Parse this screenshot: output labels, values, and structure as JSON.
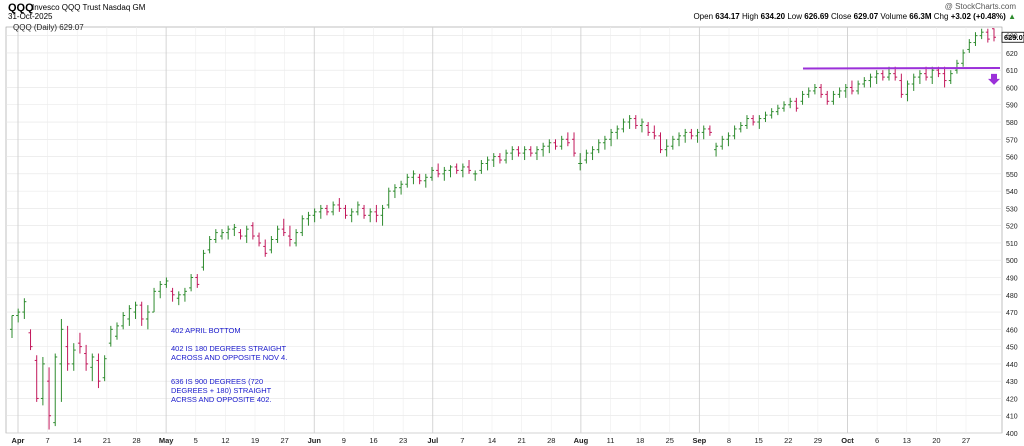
{
  "header": {
    "symbol": "QQQ",
    "full_name": "Invesco QQQ Trust Nasdaq GM",
    "date": "31-Oct-2025",
    "watermark": "@ StockCharts.com",
    "open_label": "Open",
    "open_value": "634.17",
    "high_label": "High",
    "high_value": "634.20",
    "low_label": "Low",
    "low_value": "626.69",
    "close_label": "Close",
    "close_value": "629.07",
    "volume_label": "Volume",
    "volume_value": "66.3M",
    "chg_label": "Chg",
    "chg_value": "+3.02 (+0.48%)",
    "chg_arrow": "▲"
  },
  "annotations": [
    "402 APRIL BOTTOM",
    "402 IS 180 DEGREES STRAIGHT ACROSS AND OPPOSITE NOV 4.",
    "636 IS 900 DEGREES (720 DEGREES + 180) STRAIGHT ACRSS AND OPPOSITE 402."
  ],
  "chart_data": {
    "type": "bar",
    "legend": "QQQ (Daily) 629.07",
    "last_price_label": "629.07",
    "up_color": "#2e8b2e",
    "down_color": "#c2185b",
    "resistance_line_color": "#9b30d9",
    "arrow_color": "#9b30d9",
    "resistance_level": 611,
    "ylim": [
      400,
      635
    ],
    "y_ticks": [
      400,
      410,
      420,
      430,
      440,
      450,
      460,
      470,
      480,
      490,
      500,
      510,
      520,
      530,
      540,
      550,
      560,
      570,
      580,
      590,
      600,
      610,
      620,
      630
    ],
    "x_tick_labels": [
      "Apr",
      "7",
      "14",
      "21",
      "28",
      "May",
      "5",
      "12",
      "19",
      "27",
      "Jun",
      "9",
      "16",
      "23",
      "Jul",
      "7",
      "14",
      "21",
      "28",
      "Aug",
      "11",
      "18",
      "25",
      "Sep",
      "8",
      "15",
      "22",
      "29",
      "Oct",
      "6",
      "13",
      "20",
      "27"
    ],
    "major_tick_labels": [
      "Apr",
      "May",
      "Jun",
      "Jul",
      "Aug",
      "Sep",
      "Oct"
    ],
    "grid": true,
    "bars": [
      {
        "o": 460,
        "h": 468,
        "l": 455,
        "c": 468
      },
      {
        "o": 468,
        "h": 472,
        "l": 464,
        "c": 470
      },
      {
        "o": 470,
        "h": 478,
        "l": 466,
        "c": 476
      },
      {
        "o": 458,
        "h": 460,
        "l": 448,
        "c": 450
      },
      {
        "o": 442,
        "h": 445,
        "l": 418,
        "c": 420
      },
      {
        "o": 420,
        "h": 444,
        "l": 416,
        "c": 440
      },
      {
        "o": 430,
        "h": 438,
        "l": 402,
        "c": 410
      },
      {
        "o": 406,
        "h": 446,
        "l": 404,
        "c": 444
      },
      {
        "o": 440,
        "h": 466,
        "l": 418,
        "c": 460
      },
      {
        "o": 450,
        "h": 462,
        "l": 436,
        "c": 440
      },
      {
        "o": 440,
        "h": 452,
        "l": 436,
        "c": 448
      },
      {
        "o": 452,
        "h": 458,
        "l": 446,
        "c": 450
      },
      {
        "o": 446,
        "h": 451,
        "l": 436,
        "c": 440
      },
      {
        "o": 438,
        "h": 446,
        "l": 430,
        "c": 444
      },
      {
        "o": 442,
        "h": 446,
        "l": 426,
        "c": 430
      },
      {
        "o": 432,
        "h": 445,
        "l": 430,
        "c": 443
      },
      {
        "o": 452,
        "h": 462,
        "l": 450,
        "c": 460
      },
      {
        "o": 456,
        "h": 464,
        "l": 454,
        "c": 462
      },
      {
        "o": 462,
        "h": 470,
        "l": 460,
        "c": 468
      },
      {
        "o": 466,
        "h": 474,
        "l": 462,
        "c": 472
      },
      {
        "o": 470,
        "h": 476,
        "l": 466,
        "c": 474
      },
      {
        "o": 474,
        "h": 476,
        "l": 462,
        "c": 466
      },
      {
        "o": 466,
        "h": 474,
        "l": 460,
        "c": 470
      },
      {
        "o": 470,
        "h": 484,
        "l": 470,
        "c": 482
      },
      {
        "o": 482,
        "h": 488,
        "l": 478,
        "c": 486
      },
      {
        "o": 486,
        "h": 490,
        "l": 484,
        "c": 488
      },
      {
        "o": 482,
        "h": 484,
        "l": 476,
        "c": 480
      },
      {
        "o": 478,
        "h": 482,
        "l": 474,
        "c": 480
      },
      {
        "o": 480,
        "h": 484,
        "l": 476,
        "c": 482
      },
      {
        "o": 484,
        "h": 492,
        "l": 482,
        "c": 490
      },
      {
        "o": 490,
        "h": 492,
        "l": 484,
        "c": 486
      },
      {
        "o": 496,
        "h": 506,
        "l": 494,
        "c": 504
      },
      {
        "o": 506,
        "h": 514,
        "l": 504,
        "c": 512
      },
      {
        "o": 512,
        "h": 518,
        "l": 510,
        "c": 516
      },
      {
        "o": 514,
        "h": 518,
        "l": 512,
        "c": 516
      },
      {
        "o": 516,
        "h": 520,
        "l": 512,
        "c": 518
      },
      {
        "o": 518,
        "h": 521,
        "l": 514,
        "c": 519
      },
      {
        "o": 516,
        "h": 518,
        "l": 512,
        "c": 514
      },
      {
        "o": 514,
        "h": 520,
        "l": 510,
        "c": 518
      },
      {
        "o": 520,
        "h": 522,
        "l": 512,
        "c": 514
      },
      {
        "o": 514,
        "h": 516,
        "l": 508,
        "c": 510
      },
      {
        "o": 508,
        "h": 512,
        "l": 502,
        "c": 504
      },
      {
        "o": 506,
        "h": 514,
        "l": 504,
        "c": 512
      },
      {
        "o": 512,
        "h": 520,
        "l": 510,
        "c": 518
      },
      {
        "o": 518,
        "h": 524,
        "l": 514,
        "c": 516
      },
      {
        "o": 514,
        "h": 520,
        "l": 508,
        "c": 512
      },
      {
        "o": 510,
        "h": 518,
        "l": 508,
        "c": 516
      },
      {
        "o": 516,
        "h": 526,
        "l": 514,
        "c": 524
      },
      {
        "o": 524,
        "h": 528,
        "l": 520,
        "c": 526
      },
      {
        "o": 526,
        "h": 530,
        "l": 522,
        "c": 528
      },
      {
        "o": 528,
        "h": 532,
        "l": 524,
        "c": 530
      },
      {
        "o": 530,
        "h": 532,
        "l": 526,
        "c": 528
      },
      {
        "o": 528,
        "h": 534,
        "l": 526,
        "c": 532
      },
      {
        "o": 532,
        "h": 536,
        "l": 528,
        "c": 530
      },
      {
        "o": 530,
        "h": 532,
        "l": 524,
        "c": 526
      },
      {
        "o": 526,
        "h": 530,
        "l": 522,
        "c": 528
      },
      {
        "o": 528,
        "h": 534,
        "l": 526,
        "c": 532
      },
      {
        "o": 530,
        "h": 532,
        "l": 524,
        "c": 526
      },
      {
        "o": 526,
        "h": 530,
        "l": 522,
        "c": 528
      },
      {
        "o": 528,
        "h": 532,
        "l": 522,
        "c": 526
      },
      {
        "o": 526,
        "h": 532,
        "l": 520,
        "c": 530
      },
      {
        "o": 532,
        "h": 542,
        "l": 530,
        "c": 540
      },
      {
        "o": 540,
        "h": 544,
        "l": 536,
        "c": 542
      },
      {
        "o": 542,
        "h": 546,
        "l": 538,
        "c": 544
      },
      {
        "o": 544,
        "h": 550,
        "l": 542,
        "c": 548
      },
      {
        "o": 548,
        "h": 552,
        "l": 544,
        "c": 550
      },
      {
        "o": 548,
        "h": 550,
        "l": 544,
        "c": 546
      },
      {
        "o": 546,
        "h": 550,
        "l": 542,
        "c": 548
      },
      {
        "o": 548,
        "h": 554,
        "l": 546,
        "c": 552
      },
      {
        "o": 552,
        "h": 556,
        "l": 548,
        "c": 550
      },
      {
        "o": 550,
        "h": 554,
        "l": 546,
        "c": 552
      },
      {
        "o": 552,
        "h": 555,
        "l": 548,
        "c": 554
      },
      {
        "o": 554,
        "h": 556,
        "l": 550,
        "c": 552
      },
      {
        "o": 552,
        "h": 556,
        "l": 548,
        "c": 554
      },
      {
        "o": 554,
        "h": 558,
        "l": 550,
        "c": 552
      },
      {
        "o": 550,
        "h": 552,
        "l": 546,
        "c": 550
      },
      {
        "o": 552,
        "h": 558,
        "l": 550,
        "c": 556
      },
      {
        "o": 556,
        "h": 560,
        "l": 552,
        "c": 558
      },
      {
        "o": 558,
        "h": 562,
        "l": 554,
        "c": 560
      },
      {
        "o": 560,
        "h": 562,
        "l": 556,
        "c": 558
      },
      {
        "o": 558,
        "h": 564,
        "l": 556,
        "c": 562
      },
      {
        "o": 562,
        "h": 566,
        "l": 558,
        "c": 564
      },
      {
        "o": 564,
        "h": 566,
        "l": 560,
        "c": 562
      },
      {
        "o": 562,
        "h": 566,
        "l": 558,
        "c": 564
      },
      {
        "o": 564,
        "h": 566,
        "l": 560,
        "c": 562
      },
      {
        "o": 562,
        "h": 566,
        "l": 558,
        "c": 564
      },
      {
        "o": 564,
        "h": 568,
        "l": 560,
        "c": 566
      },
      {
        "o": 566,
        "h": 570,
        "l": 562,
        "c": 568
      },
      {
        "o": 568,
        "h": 570,
        "l": 564,
        "c": 566
      },
      {
        "o": 566,
        "h": 572,
        "l": 564,
        "c": 570
      },
      {
        "o": 570,
        "h": 574,
        "l": 566,
        "c": 568
      },
      {
        "o": 570,
        "h": 574,
        "l": 560,
        "c": 562
      },
      {
        "o": 556,
        "h": 562,
        "l": 552,
        "c": 556
      },
      {
        "o": 558,
        "h": 564,
        "l": 556,
        "c": 562
      },
      {
        "o": 562,
        "h": 566,
        "l": 558,
        "c": 564
      },
      {
        "o": 564,
        "h": 570,
        "l": 562,
        "c": 568
      },
      {
        "o": 568,
        "h": 572,
        "l": 564,
        "c": 570
      },
      {
        "o": 570,
        "h": 576,
        "l": 566,
        "c": 574
      },
      {
        "o": 574,
        "h": 578,
        "l": 570,
        "c": 576
      },
      {
        "o": 576,
        "h": 582,
        "l": 574,
        "c": 580
      },
      {
        "o": 580,
        "h": 584,
        "l": 576,
        "c": 582
      },
      {
        "o": 582,
        "h": 584,
        "l": 576,
        "c": 578
      },
      {
        "o": 578,
        "h": 582,
        "l": 574,
        "c": 580
      },
      {
        "o": 578,
        "h": 580,
        "l": 572,
        "c": 574
      },
      {
        "o": 574,
        "h": 578,
        "l": 570,
        "c": 572
      },
      {
        "o": 572,
        "h": 574,
        "l": 562,
        "c": 564
      },
      {
        "o": 564,
        "h": 570,
        "l": 560,
        "c": 566
      },
      {
        "o": 566,
        "h": 572,
        "l": 564,
        "c": 570
      },
      {
        "o": 570,
        "h": 574,
        "l": 566,
        "c": 572
      },
      {
        "o": 572,
        "h": 576,
        "l": 568,
        "c": 574
      },
      {
        "o": 574,
        "h": 576,
        "l": 570,
        "c": 572
      },
      {
        "o": 572,
        "h": 576,
        "l": 568,
        "c": 574
      },
      {
        "o": 574,
        "h": 578,
        "l": 570,
        "c": 576
      },
      {
        "o": 576,
        "h": 578,
        "l": 572,
        "c": 574
      },
      {
        "o": 564,
        "h": 568,
        "l": 560,
        "c": 566
      },
      {
        "o": 566,
        "h": 572,
        "l": 564,
        "c": 570
      },
      {
        "o": 570,
        "h": 574,
        "l": 566,
        "c": 572
      },
      {
        "o": 572,
        "h": 578,
        "l": 570,
        "c": 576
      },
      {
        "o": 576,
        "h": 580,
        "l": 574,
        "c": 578
      },
      {
        "o": 578,
        "h": 584,
        "l": 576,
        "c": 582
      },
      {
        "o": 582,
        "h": 584,
        "l": 578,
        "c": 580
      },
      {
        "o": 580,
        "h": 584,
        "l": 576,
        "c": 582
      },
      {
        "o": 582,
        "h": 586,
        "l": 580,
        "c": 584
      },
      {
        "o": 584,
        "h": 588,
        "l": 582,
        "c": 586
      },
      {
        "o": 586,
        "h": 590,
        "l": 584,
        "c": 588
      },
      {
        "o": 588,
        "h": 592,
        "l": 586,
        "c": 590
      },
      {
        "o": 590,
        "h": 594,
        "l": 588,
        "c": 592
      },
      {
        "o": 592,
        "h": 594,
        "l": 586,
        "c": 588
      },
      {
        "o": 592,
        "h": 598,
        "l": 590,
        "c": 596
      },
      {
        "o": 596,
        "h": 600,
        "l": 594,
        "c": 598
      },
      {
        "o": 598,
        "h": 602,
        "l": 596,
        "c": 600
      },
      {
        "o": 600,
        "h": 602,
        "l": 594,
        "c": 596
      },
      {
        "o": 596,
        "h": 598,
        "l": 590,
        "c": 592
      },
      {
        "o": 592,
        "h": 598,
        "l": 590,
        "c": 596
      },
      {
        "o": 596,
        "h": 600,
        "l": 594,
        "c": 598
      },
      {
        "o": 598,
        "h": 602,
        "l": 594,
        "c": 600
      },
      {
        "o": 600,
        "h": 604,
        "l": 596,
        "c": 598
      },
      {
        "o": 598,
        "h": 604,
        "l": 596,
        "c": 602
      },
      {
        "o": 602,
        "h": 606,
        "l": 600,
        "c": 604
      },
      {
        "o": 604,
        "h": 608,
        "l": 600,
        "c": 606
      },
      {
        "o": 606,
        "h": 610,
        "l": 602,
        "c": 608
      },
      {
        "o": 608,
        "h": 610,
        "l": 604,
        "c": 606
      },
      {
        "o": 606,
        "h": 612,
        "l": 604,
        "c": 608
      },
      {
        "o": 608,
        "h": 612,
        "l": 604,
        "c": 606
      },
      {
        "o": 604,
        "h": 608,
        "l": 594,
        "c": 596
      },
      {
        "o": 596,
        "h": 604,
        "l": 592,
        "c": 602
      },
      {
        "o": 602,
        "h": 608,
        "l": 598,
        "c": 606
      },
      {
        "o": 606,
        "h": 610,
        "l": 602,
        "c": 608
      },
      {
        "o": 608,
        "h": 612,
        "l": 604,
        "c": 606
      },
      {
        "o": 606,
        "h": 612,
        "l": 602,
        "c": 610
      },
      {
        "o": 610,
        "h": 612,
        "l": 606,
        "c": 608
      },
      {
        "o": 608,
        "h": 612,
        "l": 600,
        "c": 604
      },
      {
        "o": 604,
        "h": 610,
        "l": 602,
        "c": 608
      },
      {
        "o": 610,
        "h": 616,
        "l": 608,
        "c": 614
      },
      {
        "o": 614,
        "h": 622,
        "l": 612,
        "c": 620
      },
      {
        "o": 622,
        "h": 628,
        "l": 620,
        "c": 626
      },
      {
        "o": 626,
        "h": 632,
        "l": 624,
        "c": 630
      },
      {
        "o": 630,
        "h": 634,
        "l": 628,
        "c": 632
      },
      {
        "o": 632,
        "h": 634,
        "l": 626,
        "c": 628
      },
      {
        "o": 634,
        "h": 634.2,
        "l": 626.69,
        "c": 629.07
      }
    ]
  }
}
